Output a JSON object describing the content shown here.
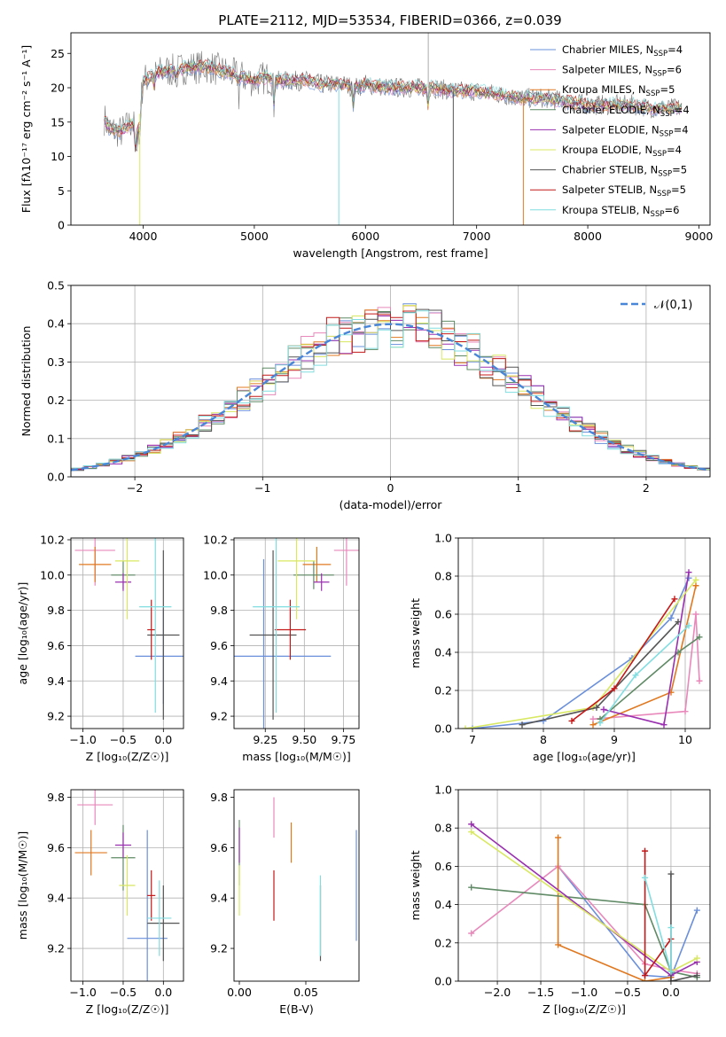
{
  "title": "PLATE=2112, MJD=53534, FIBERID=0366, z=0.039",
  "colors": [
    "#6a8fdb",
    "#e888bb",
    "#e07820",
    "#5f8a65",
    "#9a30b0",
    "#d8e860",
    "#555555",
    "#c41818",
    "#80dde0"
  ],
  "chart_data": [
    {
      "id": "spectrum",
      "type": "line",
      "title": "PLATE=2112, MJD=53534, FIBERID=0366, z=0.039",
      "xlabel": "wavelength [Angstrom, rest frame]",
      "ylabel": "Flux [fλ10⁻¹⁷ erg cm⁻² s⁻¹ A⁻¹]",
      "xlim": [
        3350,
        9100
      ],
      "ylim": [
        0,
        28
      ],
      "xticks": [
        4000,
        5000,
        6000,
        7000,
        8000,
        9000
      ],
      "yticks": [
        0,
        5,
        10,
        15,
        20,
        25
      ],
      "grid": false,
      "legend_position": "top-right",
      "continuum": {
        "x": [
          3650,
          3700,
          3800,
          3900,
          3950,
          4000,
          4100,
          4200,
          4300,
          4400,
          4500,
          4600,
          4700,
          4800,
          4900,
          5000,
          5100,
          5200,
          5300,
          5400,
          5500,
          5600,
          5700,
          5800,
          5900,
          6000,
          6200,
          6400,
          6600,
          6800,
          7000,
          7200,
          7400,
          7600,
          7800,
          8000,
          8200,
          8400,
          8600,
          8800
        ],
        "y": [
          15.5,
          14,
          13.5,
          15,
          13,
          21,
          22,
          22.5,
          22.5,
          23,
          23,
          23,
          22.5,
          22,
          21.5,
          21,
          21.5,
          21,
          21,
          21,
          21,
          20.5,
          20.5,
          20.5,
          20,
          20.5,
          20,
          20,
          20,
          19.5,
          19.5,
          19,
          18.5,
          18.5,
          18,
          17.5,
          17.5,
          17.5,
          17,
          17
        ]
      },
      "series": [
        {
          "name": "Chabrier MILES, N",
          "sub": "SSP",
          "tail": "=4"
        },
        {
          "name": "Salpeter MILES, N",
          "sub": "SSP",
          "tail": "=6"
        },
        {
          "name": "Kroupa MILES, N",
          "sub": "SSP",
          "tail": "=5"
        },
        {
          "name": "Chabrier ELODIE, N",
          "sub": "SSP",
          "tail": "=4"
        },
        {
          "name": "Salpeter ELODIE, N",
          "sub": "SSP",
          "tail": "=4"
        },
        {
          "name": "Kroupa ELODIE, N",
          "sub": "SSP",
          "tail": "=4"
        },
        {
          "name": "Chabrier STELIB, N",
          "sub": "SSP",
          "tail": "=5"
        },
        {
          "name": "Salpeter STELIB, N",
          "sub": "SSP",
          "tail": "=5"
        },
        {
          "name": "Kroupa STELIB, N",
          "sub": "SSP",
          "tail": "=6"
        }
      ]
    },
    {
      "id": "residuals",
      "type": "histogram",
      "xlabel": "(data-model)/error",
      "ylabel": "Normed distribution",
      "xlim": [
        -2.5,
        2.5
      ],
      "ylim": [
        0,
        0.5
      ],
      "xticks": [
        -2,
        -1,
        0,
        1,
        2
      ],
      "yticks": [
        0.0,
        0.1,
        0.2,
        0.3,
        0.4,
        0.5
      ],
      "grid": true,
      "reference_curve": {
        "name": "𝒩(0,1)",
        "mean": 0,
        "sigma": 1
      },
      "legend_position": "top-right"
    },
    {
      "id": "age_vs_Z",
      "type": "errorbar",
      "xlabel": "Z [log₁₀(Z/Z☉)]",
      "ylabel": "age  [log₁₀(age/yr)]",
      "xlim": [
        -1.15,
        0.25
      ],
      "ylim": [
        9.13,
        10.21
      ],
      "xticks": [
        -1.0,
        -0.5,
        0.0
      ],
      "yticks": [
        9.2,
        9.4,
        9.6,
        9.8,
        10.0,
        10.2
      ],
      "grid": true,
      "points": [
        {
          "x": 0.0,
          "y": 9.54,
          "xerr": 0.35,
          "yerr": 0.27
        },
        {
          "x": -0.85,
          "y": 10.14,
          "xerr": 0.25,
          "yerr": 0.2
        },
        {
          "x": -0.85,
          "y": 10.06,
          "xerr": 0.2,
          "yerr": 0.1
        },
        {
          "x": -0.5,
          "y": 10.0,
          "xerr": 0.15,
          "yerr": 0.08
        },
        {
          "x": -0.5,
          "y": 9.96,
          "xerr": 0.1,
          "yerr": 0.05
        },
        {
          "x": -0.45,
          "y": 10.08,
          "xerr": 0.15,
          "yerr": 0.33
        },
        {
          "x": 0.0,
          "y": 9.66,
          "xerr": 0.2,
          "yerr": 0.48
        },
        {
          "x": -0.15,
          "y": 9.69,
          "xerr": 0.05,
          "yerr": 0.17
        },
        {
          "x": -0.1,
          "y": 9.82,
          "xerr": 0.2,
          "yerr": 0.6
        }
      ]
    },
    {
      "id": "age_vs_mass",
      "type": "errorbar",
      "xlabel": "mass [log₁₀(M/M☉)]",
      "ylabel": "",
      "xlim": [
        9.05,
        9.85
      ],
      "ylim": [
        9.13,
        10.21
      ],
      "xticks": [
        9.25,
        9.5,
        9.75
      ],
      "yticks": [
        9.2,
        9.4,
        9.6,
        9.8,
        10.0,
        10.2
      ],
      "grid": true,
      "points": [
        {
          "x": 9.24,
          "y": 9.54,
          "xerr": 0.43,
          "yerr": 0.55
        },
        {
          "x": 9.77,
          "y": 10.14,
          "xerr": 0.08,
          "yerr": 0.2
        },
        {
          "x": 9.58,
          "y": 10.06,
          "xerr": 0.09,
          "yerr": 0.1
        },
        {
          "x": 9.56,
          "y": 10.0,
          "xerr": 0.13,
          "yerr": 0.08
        },
        {
          "x": 9.61,
          "y": 9.96,
          "xerr": 0.05,
          "yerr": 0.05
        },
        {
          "x": 9.45,
          "y": 10.08,
          "xerr": 0.12,
          "yerr": 0.33
        },
        {
          "x": 9.3,
          "y": 9.66,
          "xerr": 0.15,
          "yerr": 0.48
        },
        {
          "x": 9.41,
          "y": 9.69,
          "xerr": 0.1,
          "yerr": 0.17
        },
        {
          "x": 9.32,
          "y": 9.82,
          "xerr": 0.15,
          "yerr": 0.6
        }
      ]
    },
    {
      "id": "weight_vs_age",
      "type": "line",
      "xlabel": "age  [log₁₀(age/yr)]",
      "ylabel": "mass weight",
      "xlim": [
        6.8,
        10.35
      ],
      "ylim": [
        0,
        1.0
      ],
      "xticks": [
        7,
        8,
        9,
        10
      ],
      "yticks": [
        0.0,
        0.2,
        0.4,
        0.6,
        0.8,
        1.0
      ],
      "grid": true,
      "series": [
        {
          "x": [
            7.0,
            8.0,
            9.25,
            9.8,
            10.05
          ],
          "y": [
            0.0,
            0.04,
            0.37,
            0.58,
            0.79
          ]
        },
        {
          "x": [
            8.7,
            10.0,
            10.15,
            10.2
          ],
          "y": [
            0.05,
            0.09,
            0.6,
            0.25
          ]
        },
        {
          "x": [
            8.7,
            9.8,
            10.15
          ],
          "y": [
            0.02,
            0.19,
            0.75
          ]
        },
        {
          "x": [
            8.8,
            9.9,
            10.2
          ],
          "y": [
            0.05,
            0.4,
            0.48
          ]
        },
        {
          "x": [
            8.85,
            9.7,
            10.05
          ],
          "y": [
            0.1,
            0.02,
            0.82
          ]
        },
        {
          "x": [
            6.9,
            8.7,
            10.15
          ],
          "y": [
            0.0,
            0.11,
            0.78
          ]
        },
        {
          "x": [
            7.7,
            8.75,
            9.9
          ],
          "y": [
            0.02,
            0.11,
            0.56
          ]
        },
        {
          "x": [
            8.4,
            9.0,
            9.85
          ],
          "y": [
            0.04,
            0.21,
            0.68
          ]
        },
        {
          "x": [
            8.8,
            9.3,
            10.05
          ],
          "y": [
            0.03,
            0.28,
            0.54
          ]
        }
      ]
    },
    {
      "id": "mass_vs_Z",
      "type": "errorbar",
      "xlabel": "Z [log₁₀(Z/Z☉)]",
      "ylabel": "mass [log₁₀(M/M☉)]",
      "xlim": [
        -1.15,
        0.25
      ],
      "ylim": [
        9.07,
        9.83
      ],
      "xticks": [
        -1.0,
        -0.5,
        0.0
      ],
      "yticks": [
        9.2,
        9.4,
        9.6,
        9.8
      ],
      "grid": true,
      "points": [
        {
          "x": -0.2,
          "y": 9.24,
          "xerr": 0.25,
          "yerr": 0.43
        },
        {
          "x": -0.85,
          "y": 9.77,
          "xerr": 0.22,
          "yerr": 0.08
        },
        {
          "x": -0.9,
          "y": 9.58,
          "xerr": 0.2,
          "yerr": 0.09
        },
        {
          "x": -0.5,
          "y": 9.56,
          "xerr": 0.15,
          "yerr": 0.13
        },
        {
          "x": -0.5,
          "y": 9.61,
          "xerr": 0.1,
          "yerr": 0.05
        },
        {
          "x": -0.45,
          "y": 9.45,
          "xerr": 0.1,
          "yerr": 0.12
        },
        {
          "x": 0.0,
          "y": 9.3,
          "xerr": 0.2,
          "yerr": 0.15
        },
        {
          "x": -0.15,
          "y": 9.41,
          "xerr": 0.05,
          "yerr": 0.1
        },
        {
          "x": -0.05,
          "y": 9.32,
          "xerr": 0.15,
          "yerr": 0.15
        }
      ]
    },
    {
      "id": "mass_vs_EBV",
      "type": "errorbar",
      "xlabel": "E(B-V)",
      "ylabel": "",
      "xlim": [
        -0.004,
        0.09
      ],
      "ylim": [
        9.07,
        9.83
      ],
      "xticks": [
        0.0,
        0.05
      ],
      "yticks": [
        9.2,
        9.4,
        9.6,
        9.8
      ],
      "grid": false,
      "points": [
        {
          "x": 0.088,
          "y": 9.45,
          "xerr": 0,
          "yerr": 0.22
        },
        {
          "x": 0.026,
          "y": 9.72,
          "xerr": 0,
          "yerr": 0.08
        },
        {
          "x": 0.039,
          "y": 9.62,
          "xerr": 0,
          "yerr": 0.08
        },
        {
          "x": 0.0,
          "y": 9.58,
          "xerr": 0,
          "yerr": 0.13
        },
        {
          "x": 0.0,
          "y": 9.61,
          "xerr": 0,
          "yerr": 0.07
        },
        {
          "x": 0.0,
          "y": 9.43,
          "xerr": 0,
          "yerr": 0.1
        },
        {
          "x": 0.061,
          "y": 9.3,
          "xerr": 0,
          "yerr": 0.15
        },
        {
          "x": 0.026,
          "y": 9.41,
          "xerr": 0,
          "yerr": 0.1
        },
        {
          "x": 0.061,
          "y": 9.33,
          "xerr": 0,
          "yerr": 0.16
        }
      ]
    },
    {
      "id": "weight_vs_Z",
      "type": "line",
      "xlabel": "Z [log₁₀(Z/Z☉)]",
      "ylabel": "mass weight",
      "xlim": [
        -2.45,
        0.45
      ],
      "ylim": [
        0,
        1.0
      ],
      "xticks": [
        -2.0,
        -1.5,
        -1.0,
        -0.5,
        0.0
      ],
      "yticks": [
        0.0,
        0.2,
        0.4,
        0.6,
        0.8,
        1.0
      ],
      "grid": true,
      "series": [
        {
          "x": [
            -1.3,
            -0.3,
            0.0,
            0.3
          ],
          "y": [
            0.6,
            0.03,
            0.02,
            0.37
          ]
        },
        {
          "x": [
            -2.3,
            -1.3,
            -0.3,
            0.0,
            0.3
          ],
          "y": [
            0.25,
            0.6,
            0.09,
            0.06,
            0.04
          ]
        },
        {
          "x": [
            -1.3,
            -1.3,
            -0.3,
            0.0
          ],
          "y": [
            0.75,
            0.19,
            0.0,
            0.02
          ]
        },
        {
          "x": [
            -2.3,
            -0.3,
            0.0,
            0.3
          ],
          "y": [
            0.49,
            0.4,
            0.05,
            0.02
          ]
        },
        {
          "x": [
            -2.3,
            0.0,
            0.3
          ],
          "y": [
            0.82,
            0.03,
            0.1
          ]
        },
        {
          "x": [
            -2.3,
            0.0,
            0.3
          ],
          "y": [
            0.78,
            0.05,
            0.12
          ]
        },
        {
          "x": [
            0.0,
            0.0,
            0.3
          ],
          "y": [
            0.56,
            0.0,
            0.03
          ]
        },
        {
          "x": [
            -0.3,
            -0.3,
            0.0
          ],
          "y": [
            0.68,
            0.03,
            0.22
          ]
        },
        {
          "x": [
            -0.3,
            0.0,
            0.0
          ],
          "y": [
            0.54,
            0.05,
            0.28
          ]
        }
      ]
    }
  ]
}
